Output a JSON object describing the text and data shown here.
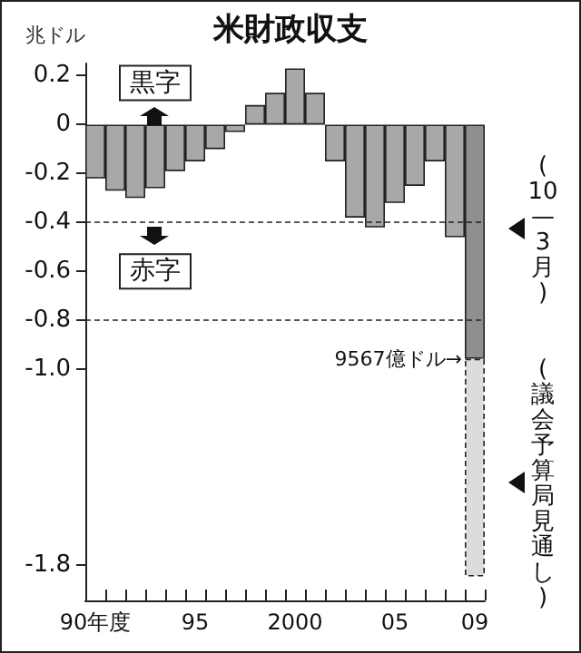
{
  "chart_data": {
    "type": "bar",
    "title": "米財政収支",
    "ylabel": "兆ドル",
    "categories": [
      "90年度",
      null,
      null,
      null,
      null,
      "95",
      null,
      null,
      null,
      null,
      "2000",
      null,
      null,
      null,
      null,
      "05",
      null,
      null,
      null,
      "09"
    ],
    "stacked": true,
    "series": [
      {
        "colors": [
          "#a8a8a8",
          "#a8a8a8",
          "#a8a8a8",
          "#a8a8a8",
          "#a8a8a8",
          "#a8a8a8",
          "#a8a8a8",
          "#a8a8a8",
          "#a8a8a8",
          "#a8a8a8",
          "#a8a8a8",
          "#a8a8a8",
          "#a8a8a8",
          "#a8a8a8",
          "#a8a8a8",
          "#a8a8a8",
          "#a8a8a8",
          "#a8a8a8",
          "#a8a8a8",
          "#8f8f8f"
        ],
        "values": [
          -0.22,
          -0.27,
          -0.3,
          -0.26,
          -0.19,
          -0.15,
          -0.1,
          -0.03,
          0.08,
          0.13,
          0.23,
          0.13,
          -0.15,
          -0.38,
          -0.42,
          -0.32,
          -0.25,
          -0.15,
          -0.46,
          -0.9567
        ]
      },
      {
        "color": "#dcdcdc",
        "line_style": "dashed",
        "values": [
          null,
          null,
          null,
          null,
          null,
          null,
          null,
          null,
          null,
          null,
          null,
          null,
          null,
          null,
          null,
          null,
          null,
          null,
          null,
          -0.89
        ]
      }
    ],
    "ylim": [
      -1.9,
      0.25
    ],
    "yticks": [
      0.2,
      0,
      -0.2,
      -0.4,
      -0.6,
      -0.8,
      {
        "value": -1,
        "label": "-1.0"
      },
      -1.8
    ],
    "ref_lines": [
      {
        "axis": "y",
        "value": -0.4,
        "line_style": "dashed"
      },
      {
        "axis": "y",
        "value": -0.8,
        "line_style": "dashed"
      }
    ],
    "annotations": [
      "黒字",
      "赤字",
      "(10—3月)",
      "(議会予算局見通し)",
      {
        "text": "9567億ドル→",
        "x": "09",
        "y": -0.9567
      }
    ],
    "grid": false
  }
}
